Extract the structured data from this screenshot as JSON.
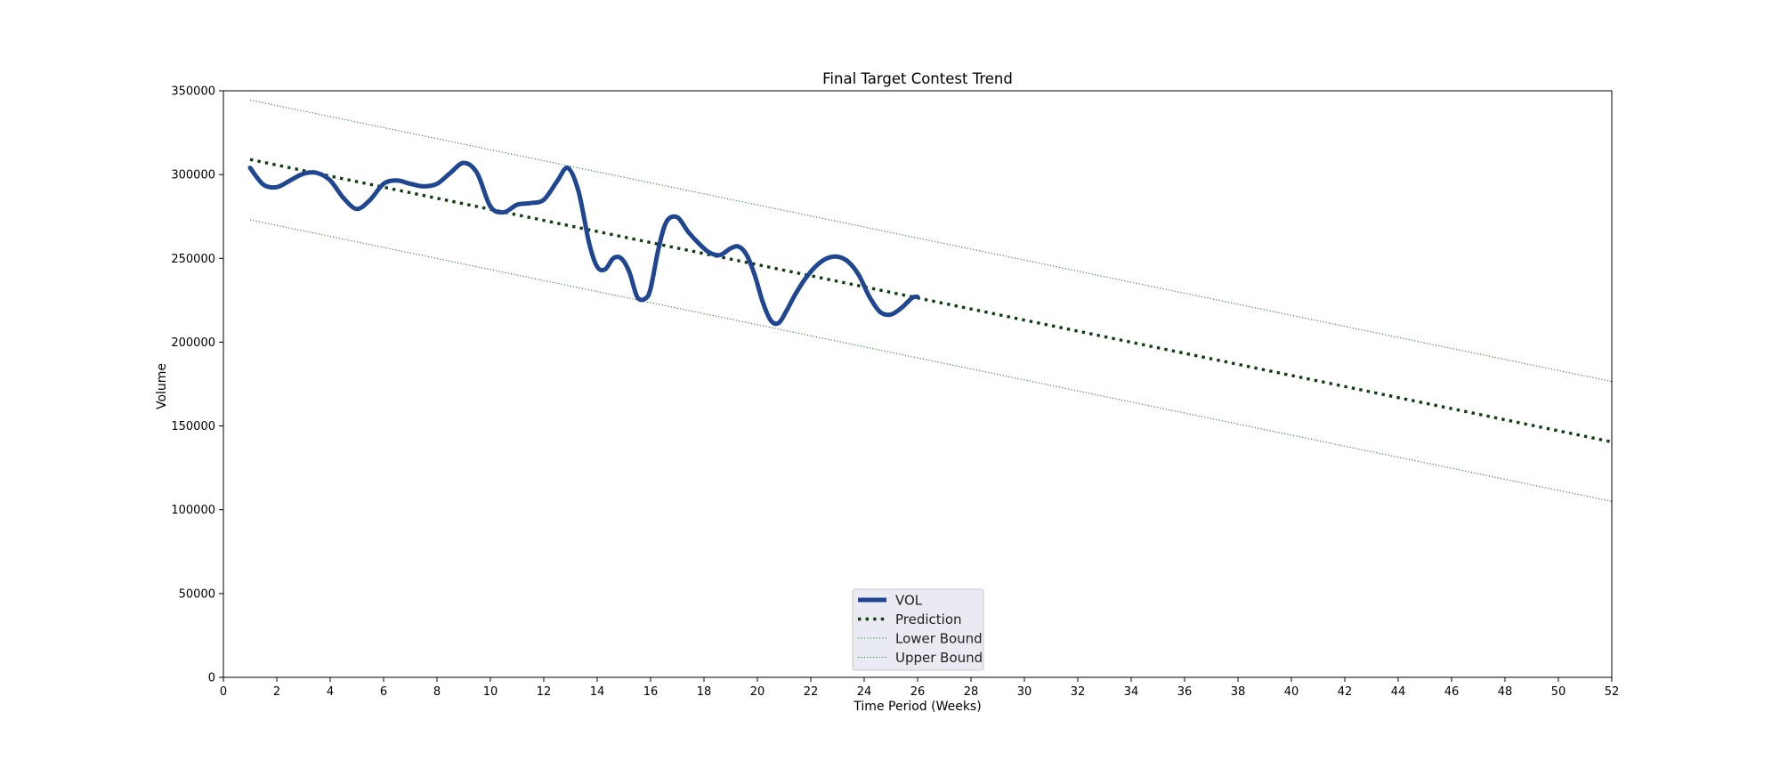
{
  "chart_data": {
    "type": "line",
    "title": "Final Target Contest Trend",
    "xlabel": "Time Period (Weeks)",
    "ylabel": "Volume",
    "xlim": [
      0,
      52
    ],
    "ylim": [
      0,
      350000
    ],
    "x_ticks": [
      0,
      2,
      4,
      6,
      8,
      10,
      12,
      14,
      16,
      18,
      20,
      22,
      24,
      26,
      28,
      30,
      32,
      34,
      36,
      38,
      40,
      42,
      44,
      46,
      48,
      50,
      52
    ],
    "y_ticks": [
      0,
      50000,
      100000,
      150000,
      200000,
      250000,
      300000,
      350000
    ],
    "x_tick_labels": [
      "0",
      "2",
      "4",
      "6",
      "8",
      "10",
      "12",
      "14",
      "16",
      "18",
      "20",
      "22",
      "24",
      "26",
      "28",
      "30",
      "32",
      "34",
      "36",
      "38",
      "40",
      "42",
      "44",
      "46",
      "48",
      "50",
      "52"
    ],
    "y_tick_labels": [
      "0",
      "50000",
      "100000",
      "150000",
      "200000",
      "250000",
      "300000",
      "350000"
    ],
    "grid": false,
    "legend_position": "bottom-center",
    "series": [
      {
        "name": "VOL",
        "style": "solid-thick",
        "color": "#1f4690",
        "x": [
          1,
          1.5,
          2,
          2.5,
          3,
          3.5,
          4,
          4.5,
          5,
          5.5,
          6,
          6.5,
          7,
          7.5,
          8,
          8.5,
          9,
          9.5,
          10,
          10.5,
          11,
          11.5,
          12,
          12.5,
          12.9,
          13.3,
          13.7,
          14,
          14.3,
          14.6,
          14.9,
          15.2,
          15.5,
          15.8,
          16,
          16.3,
          16.6,
          17,
          17.4,
          17.8,
          18.2,
          18.6,
          19,
          19.3,
          19.6,
          19.9,
          20.2,
          20.5,
          20.8,
          21.1,
          21.4,
          21.8,
          22.2,
          22.6,
          23,
          23.4,
          23.8,
          24.2,
          24.6,
          25,
          25.4,
          25.8,
          26
        ],
        "y": [
          304000,
          294000,
          292500,
          296500,
          300500,
          301000,
          296500,
          286000,
          279500,
          285000,
          294500,
          296500,
          294500,
          293000,
          294500,
          301000,
          307000,
          301000,
          281000,
          277500,
          282000,
          283000,
          285000,
          296000,
          304000,
          290000,
          259000,
          245000,
          243500,
          250000,
          250000,
          242000,
          227000,
          226000,
          232000,
          256000,
          272000,
          274500,
          266000,
          259000,
          253500,
          252000,
          256000,
          257000,
          252000,
          240000,
          224000,
          213000,
          211500,
          219000,
          228000,
          238000,
          245500,
          250000,
          251000,
          248000,
          240000,
          227000,
          218000,
          216500,
          220500,
          226500,
          227000
        ]
      },
      {
        "name": "Prediction",
        "style": "dotted-thick",
        "color": "#0f3d10",
        "x": [
          1,
          52
        ],
        "y": [
          309000,
          140500
        ]
      },
      {
        "name": "Lower Bound",
        "style": "dotted-thin",
        "color": "#2e7d2e",
        "x": [
          1,
          52
        ],
        "y": [
          273000,
          105000
        ]
      },
      {
        "name": "Upper Bound",
        "style": "dotted-thin",
        "color": "#2e7d2e",
        "x": [
          1,
          52
        ],
        "y": [
          344500,
          176500
        ]
      }
    ]
  }
}
